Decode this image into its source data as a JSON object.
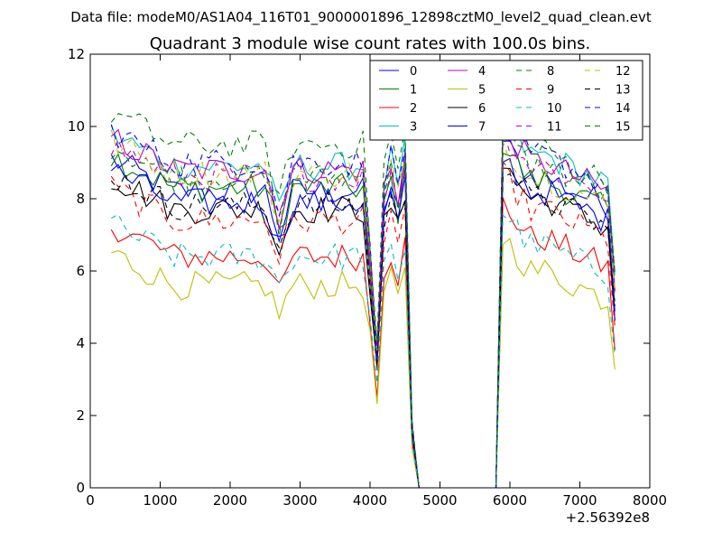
{
  "chart_data": {
    "type": "line",
    "suptitle": "Data file: modeM0/AS1A04_116T01_9000001896_12898cztM0_level2_quad_clean.evt",
    "title": "Quadrant 3 module wise count rates with 100.0s bins.",
    "xlabel": "",
    "ylabel": "",
    "x_offset_label": "+2.56392e8",
    "xlim": [
      0,
      8000
    ],
    "ylim": [
      0,
      12
    ],
    "x_ticks": [
      0,
      1000,
      2000,
      3000,
      4000,
      5000,
      6000,
      7000,
      8000
    ],
    "y_ticks": [
      0,
      2,
      4,
      6,
      8,
      10,
      12
    ],
    "legend_position": "top-right",
    "legend_columns": 4,
    "x_segments": [
      {
        "start": 300,
        "end": 3900,
        "step": 100
      },
      {
        "start": 4000,
        "end": 4700,
        "step": 100
      },
      {
        "start": 5800,
        "end": 7500,
        "step": 100
      }
    ],
    "series": [
      {
        "name": "0",
        "color": "#0000ff",
        "dash": false,
        "level": 8.2,
        "dip": 7.0,
        "post": 8.6
      },
      {
        "name": "1",
        "color": "#008000",
        "dash": false,
        "level": 8.3,
        "dip": 7.1,
        "post": 8.5
      },
      {
        "name": "2",
        "color": "#ff0000",
        "dash": false,
        "level": 6.4,
        "dip": 5.3,
        "post": 6.9
      },
      {
        "name": "3",
        "color": "#00bfbf",
        "dash": false,
        "level": 8.9,
        "dip": 7.6,
        "post": 9.2
      },
      {
        "name": "4",
        "color": "#bf00bf",
        "dash": false,
        "level": 8.8,
        "dip": 7.5,
        "post": 9.0
      },
      {
        "name": "5",
        "color": "#bfbf00",
        "dash": false,
        "level": 5.6,
        "dip": 4.8,
        "post": 6.0
      },
      {
        "name": "6",
        "color": "#000000",
        "dash": false,
        "level": 7.7,
        "dip": 6.6,
        "post": 8.0
      },
      {
        "name": "7",
        "color": "#0000ff",
        "dash": false,
        "level": 7.9,
        "dip": 6.7,
        "post": 8.2
      },
      {
        "name": "8",
        "color": "#008000",
        "dash": true,
        "level": 8.6,
        "dip": 7.3,
        "post": 8.9
      },
      {
        "name": "9",
        "color": "#ff0000",
        "dash": true,
        "level": 7.4,
        "dip": 6.4,
        "post": 7.7
      },
      {
        "name": "10",
        "color": "#00bfbf",
        "dash": true,
        "level": 6.4,
        "dip": 5.6,
        "post": 6.7
      },
      {
        "name": "11",
        "color": "#bf00bf",
        "dash": true,
        "level": 8.6,
        "dip": 7.3,
        "post": 8.9
      },
      {
        "name": "12",
        "color": "#bfbf00",
        "dash": true,
        "level": 8.7,
        "dip": 7.4,
        "post": 8.6
      },
      {
        "name": "13",
        "color": "#000000",
        "dash": true,
        "level": 7.8,
        "dip": 6.7,
        "post": 8.0
      },
      {
        "name": "14",
        "color": "#0000ff",
        "dash": true,
        "level": 9.0,
        "dip": 7.6,
        "post": 9.2
      },
      {
        "name": "15",
        "color": "#008000",
        "dash": true,
        "level": 9.5,
        "dip": 7.9,
        "post": 9.3
      }
    ]
  }
}
